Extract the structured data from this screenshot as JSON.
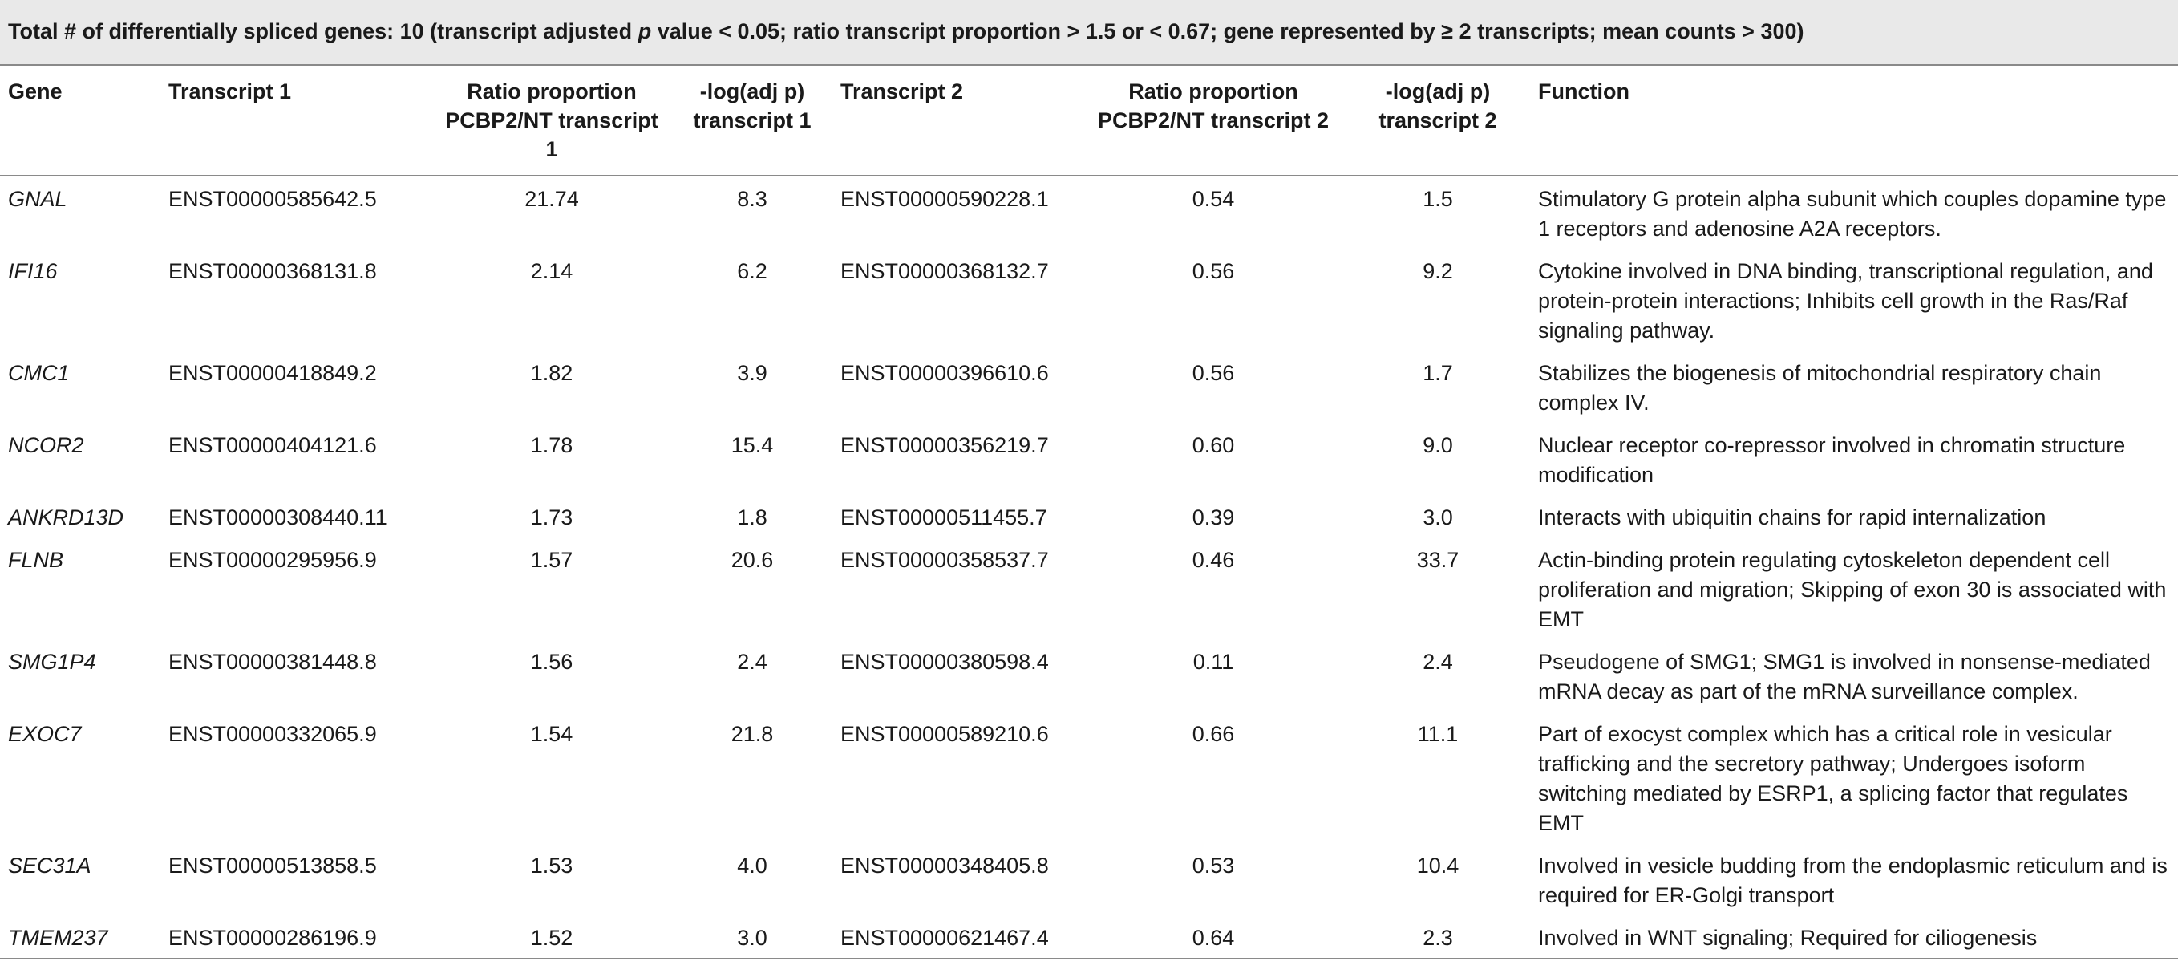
{
  "caption": {
    "prefix": "Total # of differentially spliced genes: 10 (transcript adjusted ",
    "p_letter": "p",
    "suffix": " value < 0.05; ratio transcript proportion > 1.5 or < 0.67; gene represented by ≥ 2 transcripts; mean counts > 300)"
  },
  "headers": {
    "gene": "Gene",
    "transcript1": "Transcript 1",
    "ratio1": "Ratio proportion PCBP2/NT transcript 1",
    "neglog1": "-log(adj p) transcript 1",
    "transcript2": "Transcript 2",
    "ratio2": "Ratio proportion PCBP2/NT transcript 2",
    "neglog2": "-log(adj p) transcript 2",
    "function": "Function"
  },
  "rows": [
    {
      "gene": "GNAL",
      "transcript1": "ENST00000585642.5",
      "ratio1": "21.74",
      "neglog1": "8.3",
      "transcript2": "ENST00000590228.1",
      "ratio2": "0.54",
      "neglog2": "1.5",
      "function": "Stimulatory G protein alpha subunit which couples dopamine type 1 receptors and adenosine A2A receptors."
    },
    {
      "gene": "IFI16",
      "transcript1": "ENST00000368131.8",
      "ratio1": "2.14",
      "neglog1": "6.2",
      "transcript2": "ENST00000368132.7",
      "ratio2": "0.56",
      "neglog2": "9.2",
      "function": "Cytokine involved in DNA binding, transcriptional regulation, and protein-protein interactions; Inhibits cell growth in the Ras/Raf signaling pathway."
    },
    {
      "gene": "CMC1",
      "transcript1": "ENST00000418849.2",
      "ratio1": "1.82",
      "neglog1": "3.9",
      "transcript2": "ENST00000396610.6",
      "ratio2": "0.56",
      "neglog2": "1.7",
      "function": "Stabilizes the biogenesis of mitochondrial respiratory chain complex IV."
    },
    {
      "gene": "NCOR2",
      "transcript1": "ENST00000404121.6",
      "ratio1": "1.78",
      "neglog1": "15.4",
      "transcript2": "ENST00000356219.7",
      "ratio2": "0.60",
      "neglog2": "9.0",
      "function": "Nuclear receptor co-repressor involved in chromatin structure modification"
    },
    {
      "gene": "ANKRD13D",
      "transcript1": "ENST00000308440.11",
      "ratio1": "1.73",
      "neglog1": "1.8",
      "transcript2": "ENST00000511455.7",
      "ratio2": "0.39",
      "neglog2": "3.0",
      "function": "Interacts with ubiquitin chains for rapid internalization"
    },
    {
      "gene": "FLNB",
      "transcript1": "ENST00000295956.9",
      "ratio1": "1.57",
      "neglog1": "20.6",
      "transcript2": "ENST00000358537.7",
      "ratio2": "0.46",
      "neglog2": "33.7",
      "function": "Actin-binding protein regulating cytoskeleton dependent cell proliferation and migration; Skipping of exon 30 is associated with EMT"
    },
    {
      "gene": "SMG1P4",
      "transcript1": "ENST00000381448.8",
      "ratio1": "1.56",
      "neglog1": "2.4",
      "transcript2": "ENST00000380598.4",
      "ratio2": "0.11",
      "neglog2": "2.4",
      "function": "Pseudogene of SMG1; SMG1 is involved in nonsense-mediated mRNA decay as part of the mRNA surveillance complex."
    },
    {
      "gene": "EXOC7",
      "transcript1": "ENST00000332065.9",
      "ratio1": "1.54",
      "neglog1": "21.8",
      "transcript2": "ENST00000589210.6",
      "ratio2": "0.66",
      "neglog2": "11.1",
      "function": "Part of exocyst complex which has a critical role in vesicular trafficking and the secretory pathway; Undergoes isoform switching mediated by ESRP1, a splicing factor that regulates EMT"
    },
    {
      "gene": "SEC31A",
      "transcript1": "ENST00000513858.5",
      "ratio1": "1.53",
      "neglog1": "4.0",
      "transcript2": "ENST00000348405.8",
      "ratio2": "0.53",
      "neglog2": "10.4",
      "function": "Involved in vesicle budding from the endoplasmic reticulum and is required for ER-Golgi transport"
    },
    {
      "gene": "TMEM237",
      "transcript1": "ENST00000286196.9",
      "ratio1": "1.52",
      "neglog1": "3.0",
      "transcript2": "ENST00000621467.4",
      "ratio2": "0.64",
      "neglog2": "2.3",
      "function": "Involved in WNT signaling; Required for ciliogenesis"
    }
  ]
}
